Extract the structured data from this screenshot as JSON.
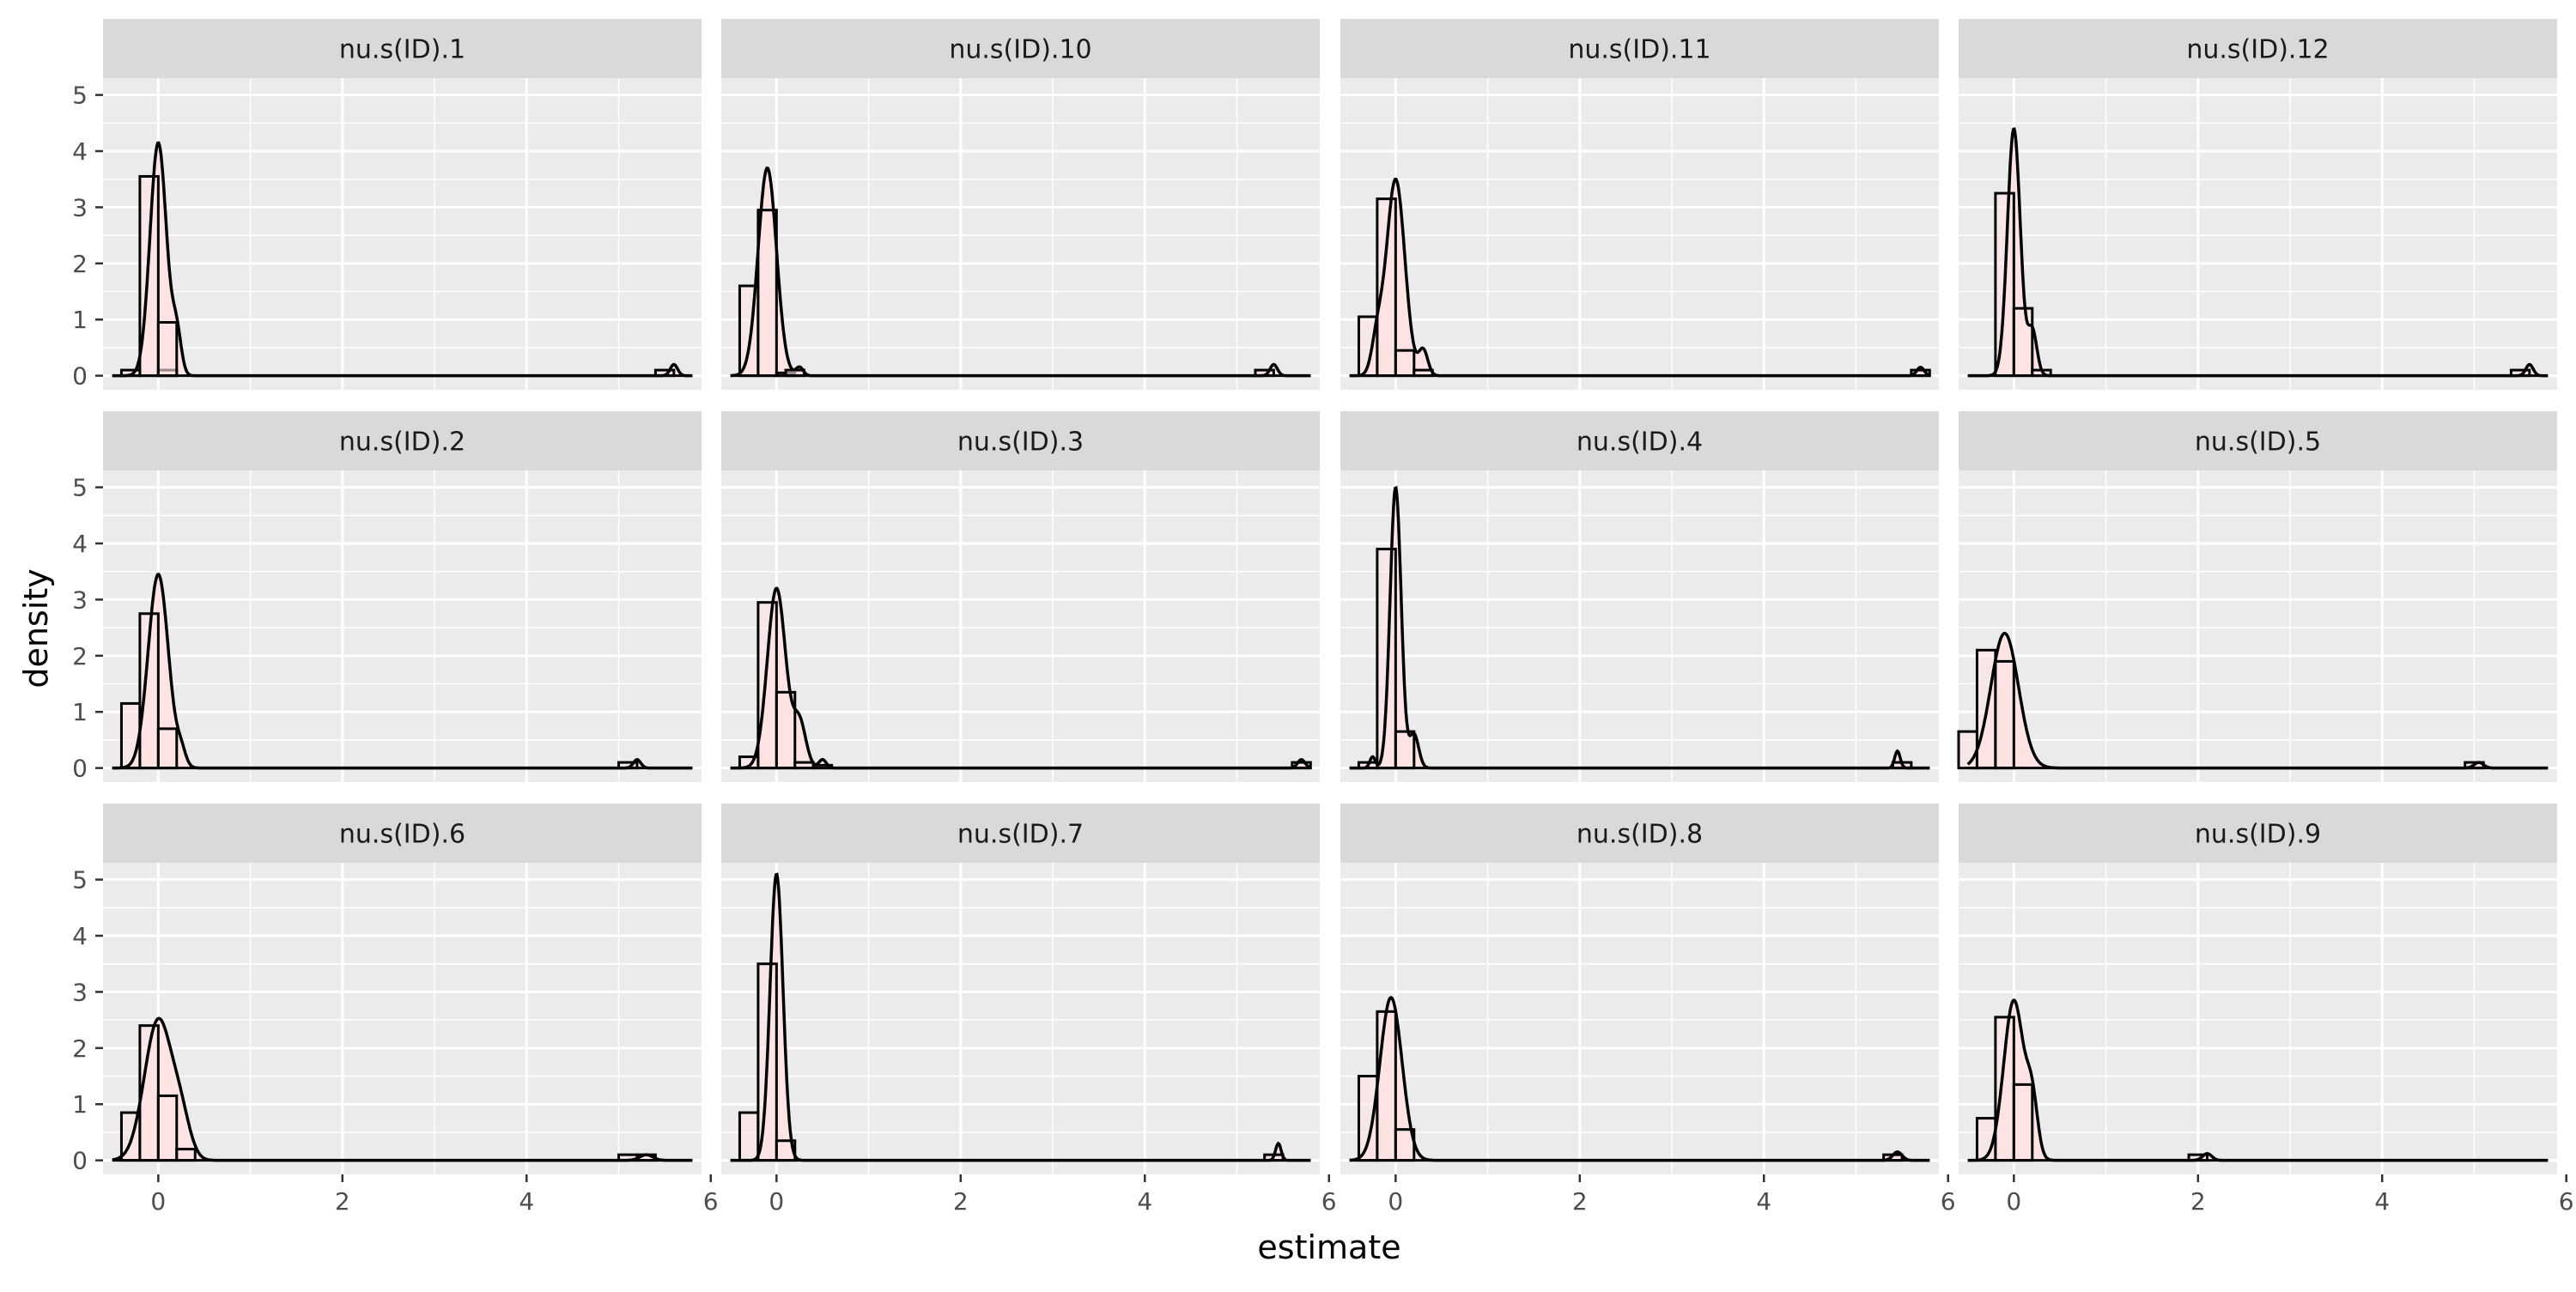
{
  "chart_data": {
    "type": "histogram-density-facets",
    "xlabel": "estimate",
    "ylabel": "density",
    "x_ticks": [
      0,
      2,
      4,
      6
    ],
    "y_ticks": [
      0,
      1,
      2,
      3,
      4,
      5
    ],
    "xlim": [
      -0.6,
      5.9
    ],
    "ylim": [
      -0.25,
      5.3
    ],
    "bin_width": 0.2,
    "grid": true,
    "colors": {
      "panel_bg": "#EBEBEB",
      "strip_bg": "#D9D9D9",
      "grid_major": "#FFFFFF",
      "bar_fill": "#FDE3E4",
      "outline": "#000000"
    },
    "panels": [
      {
        "label": "nu.s(ID).1",
        "range": [
          -0.5,
          5.8
        ],
        "bins": [
          [
            -0.3,
            0.1
          ],
          [
            -0.1,
            3.55
          ],
          [
            0.1,
            0.1
          ],
          [
            0.1,
            0.95
          ],
          [
            5.5,
            0.1
          ]
        ],
        "peaks": [
          [
            0.0,
            4.15,
            0.09
          ],
          [
            0.2,
            0.7,
            0.05
          ],
          [
            5.6,
            0.2,
            0.04
          ]
        ]
      },
      {
        "label": "nu.s(ID).10",
        "range": [
          -0.5,
          5.8
        ],
        "bins": [
          [
            -0.3,
            1.6
          ],
          [
            -0.1,
            2.95
          ],
          [
            0.1,
            0.05
          ],
          [
            0.2,
            0.1
          ],
          [
            5.3,
            0.1
          ]
        ],
        "peaks": [
          [
            -0.1,
            3.7,
            0.1
          ],
          [
            0.25,
            0.15,
            0.04
          ],
          [
            5.4,
            0.2,
            0.04
          ]
        ]
      },
      {
        "label": "nu.s(ID).11",
        "range": [
          -0.5,
          5.8
        ],
        "bins": [
          [
            -0.3,
            1.05
          ],
          [
            -0.1,
            3.15
          ],
          [
            0.1,
            0.45
          ],
          [
            0.3,
            0.1
          ],
          [
            5.7,
            0.1
          ]
        ],
        "peaks": [
          [
            0.0,
            3.5,
            0.1
          ],
          [
            -0.2,
            0.6,
            0.06
          ],
          [
            0.3,
            0.45,
            0.05
          ],
          [
            5.7,
            0.15,
            0.04
          ]
        ]
      },
      {
        "label": "nu.s(ID).12",
        "range": [
          -0.5,
          5.8
        ],
        "bins": [
          [
            -0.1,
            3.25
          ],
          [
            0.1,
            1.2
          ],
          [
            0.3,
            0.1
          ],
          [
            5.5,
            0.1
          ]
        ],
        "peaks": [
          [
            0.0,
            4.4,
            0.07
          ],
          [
            0.2,
            0.8,
            0.05
          ],
          [
            5.6,
            0.2,
            0.04
          ]
        ]
      },
      {
        "label": "nu.s(ID).2",
        "range": [
          -0.5,
          5.8
        ],
        "bins": [
          [
            -0.3,
            1.15
          ],
          [
            -0.1,
            2.75
          ],
          [
            0.1,
            0.7
          ],
          [
            5.1,
            0.1
          ]
        ],
        "peaks": [
          [
            0.0,
            3.45,
            0.11
          ],
          [
            0.25,
            0.25,
            0.05
          ],
          [
            5.2,
            0.15,
            0.04
          ]
        ]
      },
      {
        "label": "nu.s(ID).3",
        "range": [
          -0.5,
          5.8
        ],
        "bins": [
          [
            -0.3,
            0.2
          ],
          [
            -0.1,
            2.95
          ],
          [
            0.1,
            1.35
          ],
          [
            0.3,
            0.1
          ],
          [
            0.5,
            0.05
          ],
          [
            5.7,
            0.1
          ]
        ],
        "peaks": [
          [
            0.0,
            3.2,
            0.1
          ],
          [
            0.25,
            0.8,
            0.07
          ],
          [
            0.5,
            0.15,
            0.04
          ],
          [
            5.7,
            0.15,
            0.04
          ]
        ]
      },
      {
        "label": "nu.s(ID).4",
        "range": [
          -0.5,
          5.8
        ],
        "bins": [
          [
            -0.3,
            0.1
          ],
          [
            -0.1,
            3.9
          ],
          [
            0.1,
            0.65
          ],
          [
            5.5,
            0.1
          ]
        ],
        "peaks": [
          [
            0.0,
            5.0,
            0.06
          ],
          [
            0.2,
            0.6,
            0.05
          ],
          [
            -0.25,
            0.2,
            0.03
          ],
          [
            5.45,
            0.3,
            0.03
          ]
        ]
      },
      {
        "label": "nu.s(ID).5",
        "range": [
          -0.5,
          5.8
        ],
        "bins": [
          [
            -0.5,
            0.65
          ],
          [
            -0.3,
            2.1
          ],
          [
            -0.1,
            1.9
          ],
          [
            5.0,
            0.1
          ]
        ],
        "peaks": [
          [
            -0.1,
            2.4,
            0.15
          ],
          [
            5.05,
            0.1,
            0.05
          ]
        ]
      },
      {
        "label": "nu.s(ID).6",
        "range": [
          -0.5,
          5.8
        ],
        "bins": [
          [
            -0.3,
            0.85
          ],
          [
            -0.1,
            2.4
          ],
          [
            0.1,
            1.15
          ],
          [
            0.3,
            0.2
          ],
          [
            5.1,
            0.1
          ],
          [
            5.3,
            0.1
          ]
        ],
        "peaks": [
          [
            0.0,
            2.5,
            0.15
          ],
          [
            0.25,
            0.6,
            0.1
          ],
          [
            5.3,
            0.1,
            0.07
          ]
        ]
      },
      {
        "label": "nu.s(ID).7",
        "range": [
          -0.5,
          5.8
        ],
        "bins": [
          [
            -0.3,
            0.85
          ],
          [
            -0.1,
            3.5
          ],
          [
            0.1,
            0.35
          ],
          [
            5.4,
            0.1
          ]
        ],
        "peaks": [
          [
            0.0,
            5.1,
            0.07
          ],
          [
            5.45,
            0.3,
            0.03
          ]
        ]
      },
      {
        "label": "nu.s(ID).8",
        "range": [
          -0.5,
          5.8
        ],
        "bins": [
          [
            -0.3,
            1.5
          ],
          [
            -0.1,
            2.65
          ],
          [
            0.1,
            0.55
          ],
          [
            5.4,
            0.1
          ]
        ],
        "peaks": [
          [
            -0.05,
            2.9,
            0.12
          ],
          [
            5.45,
            0.15,
            0.05
          ]
        ]
      },
      {
        "label": "nu.s(ID).9",
        "range": [
          -0.5,
          5.8
        ],
        "bins": [
          [
            -0.3,
            0.75
          ],
          [
            -0.1,
            2.55
          ],
          [
            0.1,
            1.35
          ],
          [
            2.0,
            0.1
          ]
        ],
        "peaks": [
          [
            0.0,
            2.85,
            0.11
          ],
          [
            0.2,
            0.9,
            0.06
          ],
          [
            2.1,
            0.12,
            0.05
          ]
        ]
      }
    ]
  }
}
